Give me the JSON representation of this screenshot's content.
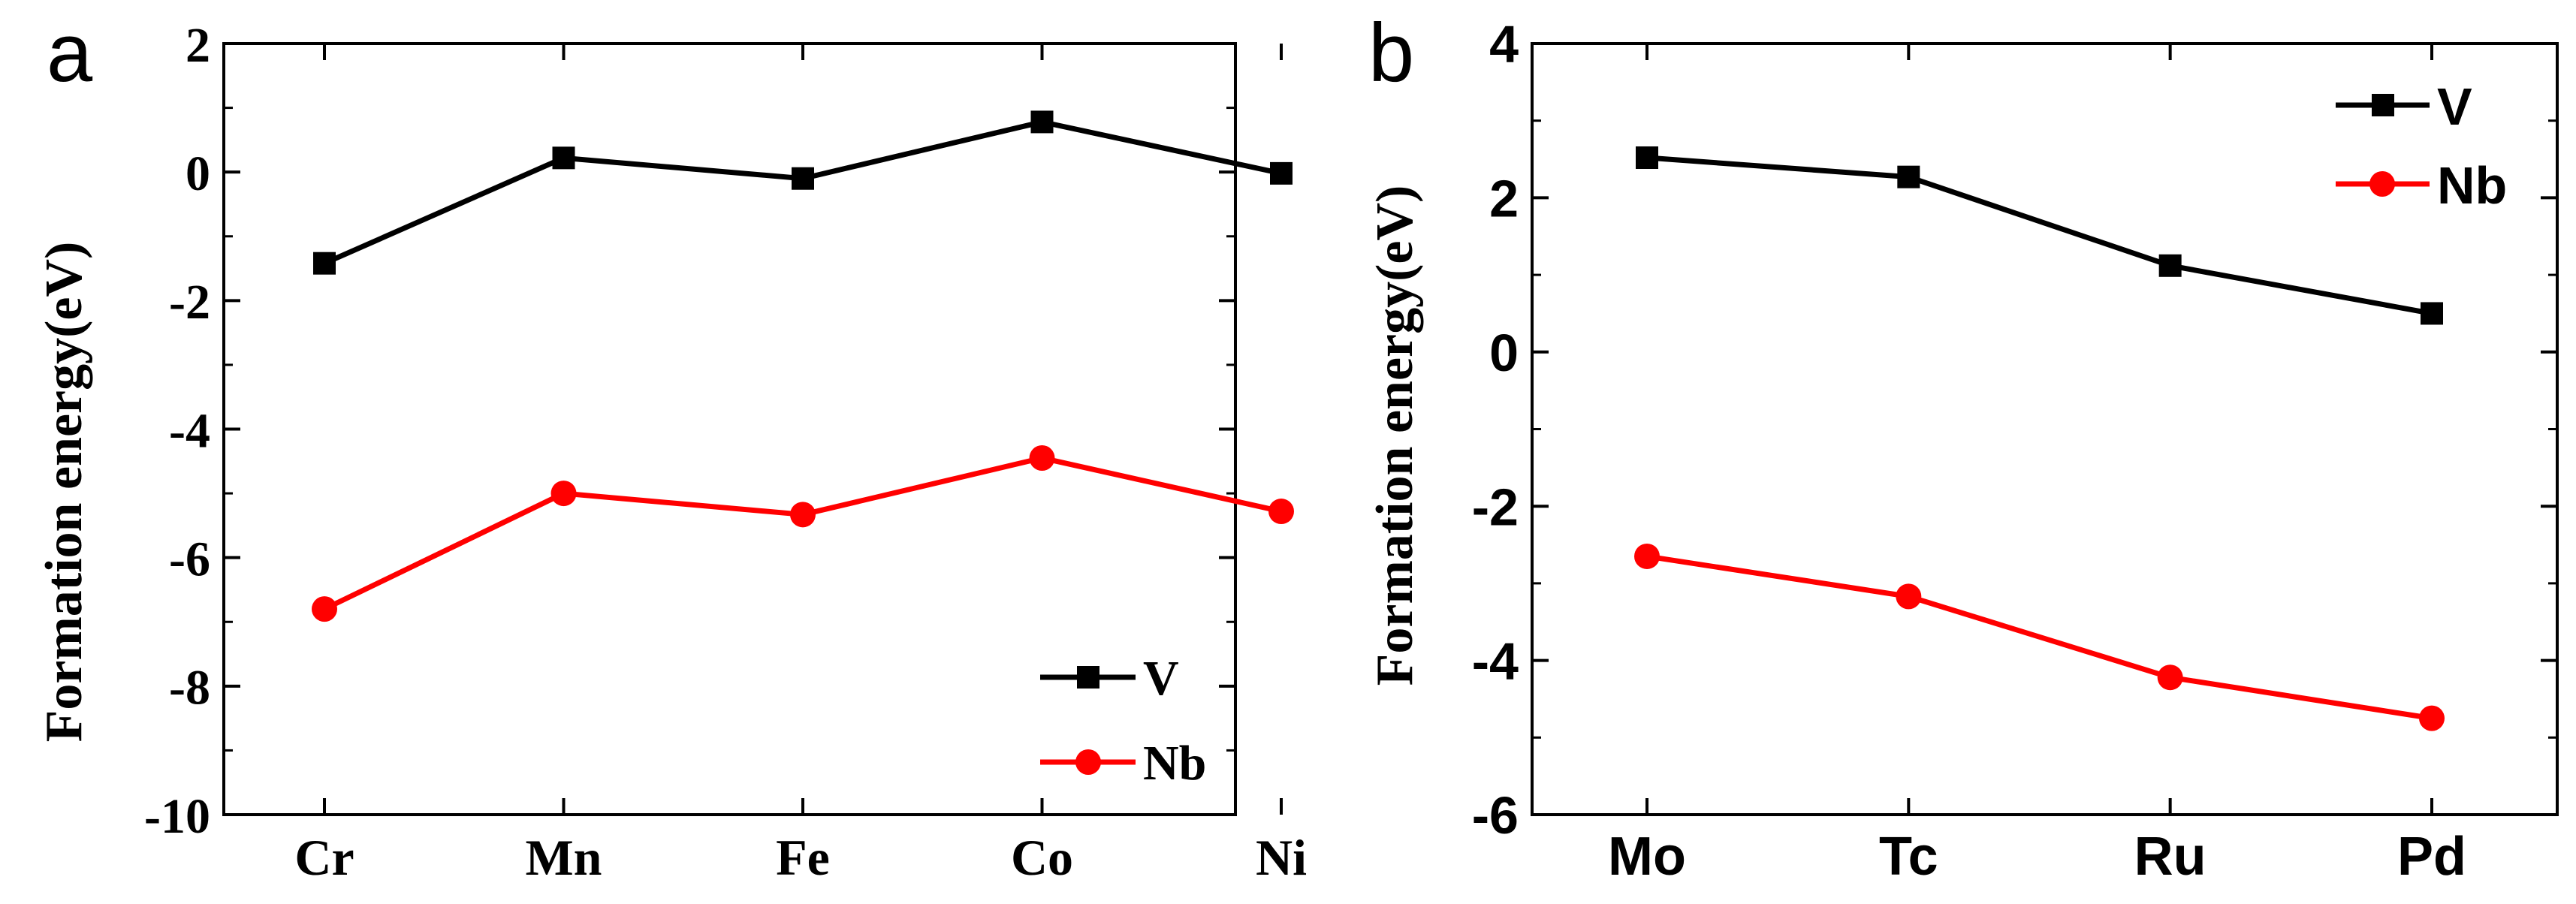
{
  "chart_data": [
    {
      "panel_label": "a",
      "type": "line",
      "categories": [
        "Cr",
        "Mn",
        "Fe",
        "Co",
        "Ni"
      ],
      "series": [
        {
          "name": "V",
          "color": "#000000",
          "marker": "square",
          "values": [
            -1.42,
            0.22,
            -0.1,
            0.78,
            -0.02
          ]
        },
        {
          "name": "Nb",
          "color": "#ff0000",
          "marker": "circle",
          "values": [
            -6.8,
            -5.0,
            -5.33,
            -4.45,
            -5.28
          ]
        }
      ],
      "ylabel": "Formation energy(eV)",
      "xlabel": "",
      "ylim": [
        -10,
        2
      ],
      "yticks": [
        "2",
        "0",
        "-2",
        "-4",
        "-6",
        "-8",
        "-10"
      ],
      "legend_position": "bottom-right",
      "grid": false
    },
    {
      "panel_label": "b",
      "type": "line",
      "categories": [
        "Mo",
        "Tc",
        "Ru",
        "Pd"
      ],
      "series": [
        {
          "name": "V",
          "color": "#000000",
          "marker": "square",
          "values": [
            2.52,
            2.27,
            1.12,
            0.5
          ]
        },
        {
          "name": "Nb",
          "color": "#ff0000",
          "marker": "circle",
          "values": [
            -2.65,
            -3.17,
            -4.22,
            -4.75
          ]
        }
      ],
      "ylabel": "Formation energy(eV)",
      "xlabel": "",
      "ylim": [
        -6,
        4
      ],
      "yticks": [
        "4",
        "2",
        "0",
        "-2",
        "-4",
        "-6"
      ],
      "legend_position": "top-right",
      "grid": false
    }
  ]
}
